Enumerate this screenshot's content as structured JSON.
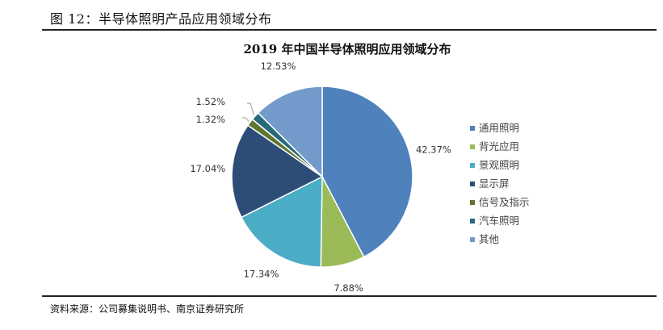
{
  "figure": {
    "title": "图  12：半导体照明产品应用领域分布",
    "source": "资料来源：公司募集说明书、南京证券研究所"
  },
  "chart_data": {
    "type": "pie",
    "title": "2019 年中国半导体照明应用领域分布",
    "legend_position": "right",
    "slices": [
      {
        "label": "通用照明",
        "value": 42.37,
        "display": "42.37%",
        "color": "#4F81BD"
      },
      {
        "label": "背光应用",
        "value": 7.88,
        "display": "7.88%",
        "color": "#9BBB59"
      },
      {
        "label": "景观照明",
        "value": 17.34,
        "display": "17.34%",
        "color": "#4BACC6"
      },
      {
        "label": "显示屏",
        "value": 17.04,
        "display": "17.04%",
        "color": "#2C4D75"
      },
      {
        "label": "信号及指示",
        "value": 1.32,
        "display": "1.32%",
        "color": "#5F7530"
      },
      {
        "label": "汽车照明",
        "value": 1.52,
        "display": "1.52%",
        "color": "#276A7C"
      },
      {
        "label": "其他",
        "value": 12.53,
        "display": "12.53%",
        "color": "#729ACA"
      }
    ]
  }
}
